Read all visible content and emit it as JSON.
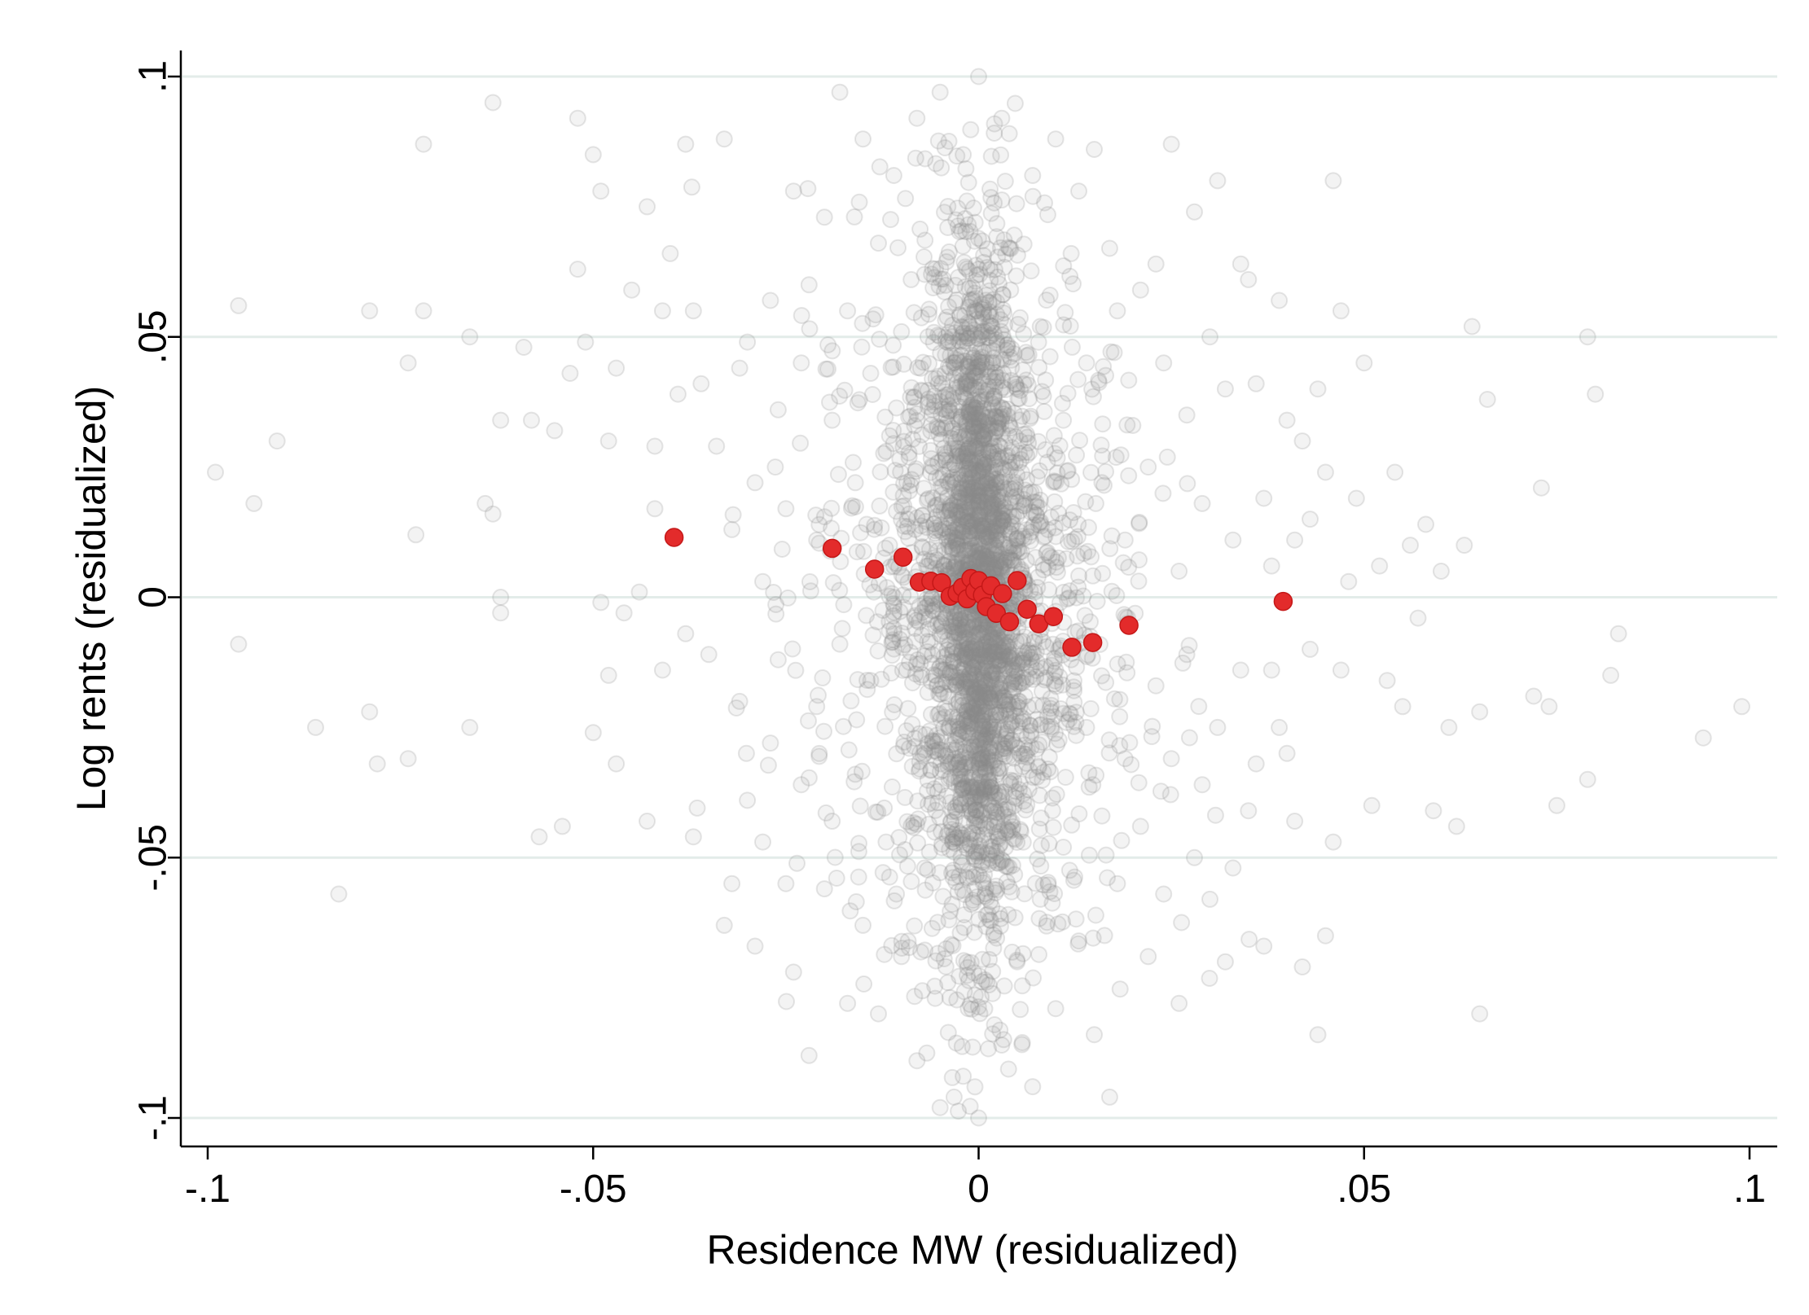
{
  "chart_data": {
    "type": "scatter",
    "xlabel": "Residence MW (residualized)",
    "ylabel": "Log rents (residualized)",
    "xlim": [
      -0.1035,
      0.1035
    ],
    "ylim": [
      -0.1055,
      0.1055
    ],
    "x_ticks": [
      -0.1,
      -0.05,
      0,
      0.05,
      0.1
    ],
    "x_tick_labels": [
      "-.1",
      "-.05",
      "0",
      ".05",
      ".1"
    ],
    "y_ticks": [
      -0.1,
      -0.05,
      0,
      0.05,
      0.1
    ],
    "y_tick_labels": [
      "-.1",
      "-.05",
      "0",
      ".05",
      ".1"
    ],
    "grid": "horizontal lines at y ticks",
    "legend": "none",
    "colors": {
      "cloud": "#8c8c8c",
      "bins": "#e32b2b",
      "grid": "#e3ece9",
      "axes": "#000000"
    },
    "series": [
      {
        "style": "hollow grey circles, semi-transparent",
        "values_note": "residualized observations (approx. 3500 points), dense around x=0",
        "points": [
          [
            -0.099,
            0.024
          ],
          [
            -0.096,
            0.056
          ],
          [
            -0.096,
            -0.009
          ],
          [
            -0.094,
            0.018
          ],
          [
            -0.091,
            0.03
          ],
          [
            -0.086,
            -0.025
          ],
          [
            -0.083,
            -0.057
          ],
          [
            -0.079,
            0.055
          ],
          [
            -0.079,
            -0.022
          ],
          [
            -0.078,
            -0.032
          ],
          [
            -0.074,
            0.045
          ],
          [
            -0.074,
            -0.031
          ],
          [
            -0.072,
            0.087
          ],
          [
            -0.072,
            0.055
          ],
          [
            -0.073,
            0.012
          ],
          [
            -0.066,
            0.05
          ],
          [
            -0.066,
            -0.025
          ],
          [
            -0.064,
            0.018
          ],
          [
            -0.063,
            0.016
          ],
          [
            -0.063,
            0.095
          ],
          [
            -0.062,
            0.034
          ],
          [
            -0.062,
            0
          ],
          [
            -0.062,
            -0.003
          ],
          [
            -0.059,
            0.048
          ],
          [
            -0.058,
            0.034
          ],
          [
            -0.057,
            -0.046
          ],
          [
            -0.055,
            0.032
          ],
          [
            -0.054,
            -0.044
          ],
          [
            -0.053,
            0.043
          ],
          [
            -0.052,
            0.063
          ],
          [
            -0.052,
            0.092
          ],
          [
            -0.051,
            0.049
          ],
          [
            -0.05,
            0.085
          ],
          [
            -0.05,
            -0.026
          ],
          [
            -0.049,
            -0.001
          ],
          [
            -0.049,
            0.078
          ],
          [
            -0.048,
            -0.015
          ],
          [
            -0.048,
            0.03
          ],
          [
            -0.047,
            0.044
          ],
          [
            -0.047,
            -0.032
          ],
          [
            -0.046,
            -0.003
          ],
          [
            -0.045,
            0.059
          ],
          [
            -0.044,
            0.001
          ],
          [
            -0.043,
            0.075
          ],
          [
            -0.043,
            -0.043
          ],
          [
            -0.042,
            0.017
          ],
          [
            -0.042,
            0.029
          ],
          [
            -0.041,
            -0.014
          ],
          [
            -0.041,
            0.055
          ],
          [
            -0.04,
            0.066
          ],
          [
            -0.039,
            0.039
          ],
          [
            -0.038,
            0.087
          ],
          [
            -0.038,
            -0.007
          ],
          [
            -0.037,
            0.055
          ],
          [
            -0.037,
            -0.046
          ],
          [
            -0.036,
            0.041
          ],
          [
            -0.035,
            -0.011
          ],
          [
            -0.034,
            0.029
          ],
          [
            -0.033,
            0.088
          ],
          [
            -0.033,
            -0.063
          ],
          [
            -0.032,
            0.013
          ],
          [
            -0.032,
            -0.055
          ],
          [
            -0.031,
            0.044
          ],
          [
            -0.031,
            -0.02
          ],
          [
            -0.03,
            0.049
          ],
          [
            -0.03,
            -0.039
          ],
          [
            -0.029,
            0.022
          ],
          [
            -0.029,
            -0.067
          ],
          [
            -0.028,
            0.003
          ],
          [
            -0.028,
            -0.047
          ],
          [
            -0.027,
            0.057
          ],
          [
            -0.027,
            -0.028
          ],
          [
            -0.026,
            0.036
          ],
          [
            -0.026,
            -0.012
          ],
          [
            -0.025,
            -0.055
          ],
          [
            -0.025,
            0.017
          ],
          [
            -0.024,
            -0.072
          ],
          [
            -0.024,
            0.078
          ],
          [
            -0.023,
            0.045
          ],
          [
            -0.023,
            -0.036
          ],
          [
            -0.022,
            0.06
          ],
          [
            -0.022,
            -0.088
          ],
          [
            -0.021,
            0.011
          ],
          [
            -0.021,
            -0.021
          ],
          [
            -0.02,
            0.073
          ],
          [
            -0.02,
            -0.056
          ],
          [
            -0.019,
            0.034
          ],
          [
            -0.019,
            -0.043
          ],
          [
            -0.018,
            0.097
          ],
          [
            -0.018,
            -0.009
          ],
          [
            -0.017,
            0.055
          ],
          [
            -0.017,
            -0.078
          ],
          [
            -0.016,
            0.022
          ],
          [
            -0.016,
            -0.034
          ],
          [
            -0.015,
            0.088
          ],
          [
            -0.015,
            -0.063
          ],
          [
            -0.014,
            0.043
          ],
          [
            -0.014,
            -0.016
          ],
          [
            -0.013,
            0.068
          ],
          [
            -0.013,
            -0.08
          ],
          [
            -0.012,
            0.028
          ],
          [
            -0.012,
            -0.047
          ],
          [
            -0.011,
            0.081
          ],
          [
            -0.011,
            -0.006
          ],
          [
            -0.01,
            0.051
          ],
          [
            -0.01,
            -0.069
          ],
          [
            -0.009,
            0.016
          ],
          [
            -0.009,
            -0.029
          ],
          [
            -0.008,
            0.092
          ],
          [
            -0.008,
            -0.089
          ],
          [
            -0.007,
            0.062
          ],
          [
            -0.007,
            -0.052
          ],
          [
            -0.006,
            0.036
          ],
          [
            -0.006,
            -0.011
          ],
          [
            -0.005,
            0.097
          ],
          [
            -0.005,
            -0.098
          ],
          [
            -0.004,
            0.071
          ],
          [
            -0.004,
            -0.074
          ],
          [
            -0.003,
            0.022
          ],
          [
            -0.003,
            -0.041
          ],
          [
            -0.002,
            0.085
          ],
          [
            -0.002,
            -0.092
          ],
          [
            -0.001,
            0.045
          ],
          [
            -0.001,
            -0.016
          ],
          [
            0,
            0.1
          ],
          [
            0,
            -0.1
          ],
          [
            0.001,
            0.058
          ],
          [
            0.001,
            -0.061
          ],
          [
            0.002,
            0.029
          ],
          [
            0.002,
            -0.027
          ],
          [
            0.003,
            0.092
          ],
          [
            0.003,
            -0.086
          ],
          [
            0.004,
            0.067
          ],
          [
            0.004,
            -0.045
          ],
          [
            0.005,
            0.04
          ],
          [
            0.005,
            -0.07
          ],
          [
            0.006,
            0.018
          ],
          [
            0.006,
            -0.019
          ],
          [
            0.007,
            0.081
          ],
          [
            0.007,
            -0.094
          ],
          [
            0.008,
            0.052
          ],
          [
            0.008,
            -0.058
          ],
          [
            0.009,
            0.013
          ],
          [
            0.009,
            -0.033
          ],
          [
            0.01,
            0.088
          ],
          [
            0.01,
            -0.079
          ],
          [
            0.011,
            0.034
          ],
          [
            0.011,
            -0.048
          ],
          [
            0.012,
            0.066
          ],
          [
            0.012,
            -0.012
          ],
          [
            0.013,
            0.078
          ],
          [
            0.013,
            -0.066
          ],
          [
            0.014,
            0.045
          ],
          [
            0.014,
            -0.025
          ],
          [
            0.015,
            0.086
          ],
          [
            0.015,
            -0.084
          ],
          [
            0.016,
            0.022
          ],
          [
            0.016,
            -0.042
          ],
          [
            0.017,
            0.067
          ],
          [
            0.017,
            -0.096
          ],
          [
            0.018,
            0.055
          ],
          [
            0.018,
            -0.055
          ],
          [
            0.019,
            0.011
          ],
          [
            0.019,
            -0.031
          ],
          [
            0.02,
            0.033
          ],
          [
            0.021,
            0.059
          ],
          [
            0.021,
            -0.044
          ],
          [
            0.022,
            0.025
          ],
          [
            0.022,
            -0.069
          ],
          [
            0.023,
            0.064
          ],
          [
            0.023,
            -0.017
          ],
          [
            0.024,
            0.045
          ],
          [
            0.024,
            -0.057
          ],
          [
            0.025,
            0.087
          ],
          [
            0.025,
            -0.031
          ],
          [
            0.026,
            0.005
          ],
          [
            0.026,
            -0.078
          ],
          [
            0.027,
            0.035
          ],
          [
            0.027,
            -0.011
          ],
          [
            0.028,
            0.074
          ],
          [
            0.028,
            -0.05
          ],
          [
            0.029,
            0.018
          ],
          [
            0.029,
            -0.036
          ],
          [
            0.03,
            0.05
          ],
          [
            0.03,
            -0.058
          ],
          [
            0.031,
            0.08
          ],
          [
            0.031,
            -0.025
          ],
          [
            0.032,
            0.04
          ],
          [
            0.032,
            -0.07
          ],
          [
            0.033,
            0.011
          ],
          [
            0.033,
            -0.052
          ],
          [
            0.034,
            0.064
          ],
          [
            0.034,
            -0.014
          ],
          [
            0.035,
            0.061
          ],
          [
            0.035,
            -0.041
          ],
          [
            0.036,
            0.041
          ],
          [
            0.036,
            -0.032
          ],
          [
            0.037,
            0.019
          ],
          [
            0.037,
            -0.067
          ],
          [
            0.038,
            0.006
          ],
          [
            0.038,
            -0.014
          ],
          [
            0.039,
            0.057
          ],
          [
            0.039,
            -0.025
          ],
          [
            0.04,
            0.034
          ],
          [
            0.04,
            -0.03
          ],
          [
            0.041,
            0.011
          ],
          [
            0.041,
            -0.043
          ],
          [
            0.042,
            0.03
          ],
          [
            0.042,
            -0.071
          ],
          [
            0.043,
            0.015
          ],
          [
            0.043,
            -0.01
          ],
          [
            0.044,
            0.04
          ],
          [
            0.044,
            -0.084
          ],
          [
            0.045,
            0.024
          ],
          [
            0.045,
            -0.065
          ],
          [
            0.046,
            0.08
          ],
          [
            0.046,
            -0.047
          ],
          [
            0.047,
            0.055
          ],
          [
            0.047,
            -0.014
          ],
          [
            0.048,
            0.003
          ],
          [
            0.049,
            0.019
          ],
          [
            0.05,
            0.045
          ],
          [
            0.051,
            -0.04
          ],
          [
            0.052,
            0.006
          ],
          [
            0.053,
            -0.016
          ],
          [
            0.054,
            0.024
          ],
          [
            0.055,
            -0.021
          ],
          [
            0.056,
            0.01
          ],
          [
            0.057,
            -0.004
          ],
          [
            0.058,
            0.014
          ],
          [
            0.059,
            -0.041
          ],
          [
            0.06,
            0.005
          ],
          [
            0.061,
            -0.025
          ],
          [
            0.062,
            -0.044
          ],
          [
            0.063,
            0.01
          ],
          [
            0.064,
            0.052
          ],
          [
            0.065,
            -0.022
          ],
          [
            0.066,
            0.038
          ],
          [
            0.065,
            -0.08
          ],
          [
            0.072,
            -0.019
          ],
          [
            0.073,
            0.021
          ],
          [
            0.074,
            -0.021
          ],
          [
            0.075,
            -0.04
          ],
          [
            0.079,
            0.05
          ],
          [
            0.079,
            -0.035
          ],
          [
            0.08,
            0.039
          ],
          [
            0.082,
            -0.015
          ],
          [
            0.083,
            -0.007
          ],
          [
            0.094,
            -0.027
          ],
          [
            0.099,
            -0.021
          ]
        ]
      },
      {
        "style": "filled red circles (binned means)",
        "points": [
          [
            -0.0395,
            0.0115
          ],
          [
            -0.019,
            0.0094
          ],
          [
            -0.0135,
            0.0054
          ],
          [
            -0.0098,
            0.0077
          ],
          [
            -0.0077,
            0.0029
          ],
          [
            -0.0062,
            0.0031
          ],
          [
            -0.0048,
            0.0028
          ],
          [
            -0.0037,
            0.0002
          ],
          [
            -0.0028,
            0.0008
          ],
          [
            -0.0021,
            0.0019
          ],
          [
            -0.0015,
            -0.0003
          ],
          [
            -0.001,
            0.0036
          ],
          [
            -0.0005,
            0.0012
          ],
          [
            0,
            0.0032
          ],
          [
            0.0005,
            0.0004
          ],
          [
            0.001,
            -0.0018
          ],
          [
            0.0016,
            0.0022
          ],
          [
            0.0023,
            -0.0031
          ],
          [
            0.0031,
            0.0007
          ],
          [
            0.004,
            -0.0047
          ],
          [
            0.005,
            0.0032
          ],
          [
            0.0063,
            -0.0023
          ],
          [
            0.0078,
            -0.0051
          ],
          [
            0.0097,
            -0.0037
          ],
          [
            0.0121,
            -0.0096
          ],
          [
            0.0148,
            -0.0087
          ],
          [
            0.0195,
            -0.0054
          ],
          [
            0.0395,
            -0.0008
          ]
        ]
      }
    ]
  }
}
